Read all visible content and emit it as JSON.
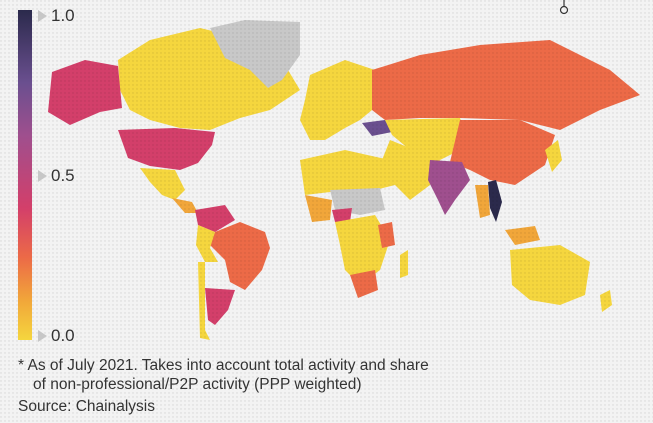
{
  "legend": {
    "ticks": [
      {
        "label": "1.0",
        "value": 1.0
      },
      {
        "label": "0.5",
        "value": 0.5
      },
      {
        "label": "0.0",
        "value": 0.0
      }
    ],
    "palette": [
      "#f5d63e",
      "#ec6a47",
      "#d33f6a",
      "#9f4f8e",
      "#6a4f8f",
      "#2b2a4c"
    ],
    "no_data_color": "#c8c8c8"
  },
  "footnote": {
    "line1": "* As of July 2021. Takes into account total activity and share",
    "line2": "of non-professional/P2P activity (PPP weighted)",
    "source": "Source: Chainalysis"
  },
  "icons": {
    "info": "info-icon"
  }
}
